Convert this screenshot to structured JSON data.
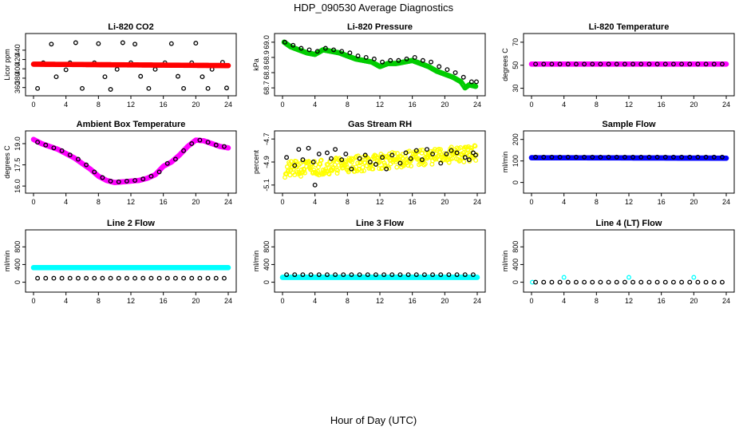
{
  "title": "HDP_090530  Average Diagnostics",
  "xlabel": "Hour of Day (UTC)",
  "chart_data": [
    {
      "type": "scatter",
      "title": "Li-820 CO2",
      "ylabel": "Licor ppm",
      "xlim": [
        0,
        24
      ],
      "ylim": [
        356,
        462
      ],
      "xticks": [
        0,
        4,
        8,
        12,
        16,
        20,
        24
      ],
      "yticks": [
        360,
        380,
        400,
        420,
        440
      ],
      "series": [
        {
          "name": "black",
          "color": "#000000",
          "marker": "ring",
          "x": [
            0.5,
            1.2,
            2.2,
            2.8,
            4.0,
            4.5,
            5.2,
            6.0,
            7.5,
            8.0,
            8.8,
            9.5,
            10.3,
            11.0,
            12.0,
            12.5,
            13.2,
            14.2,
            15.0,
            16.2,
            17.0,
            17.8,
            18.5,
            19.5,
            20.0,
            20.8,
            21.5,
            22.0,
            23.3,
            23.8
          ],
          "y": [
            358,
            413,
            453,
            383,
            398,
            413,
            456,
            358,
            413,
            454,
            383,
            356,
            399,
            456,
            413,
            453,
            384,
            358,
            399,
            413,
            454,
            384,
            358,
            413,
            455,
            383,
            358,
            399,
            414,
            359
          ]
        },
        {
          "name": "red",
          "color": "#ff0000",
          "marker": "dense",
          "x": [
            0,
            24
          ],
          "y": [
            410,
            407
          ]
        }
      ]
    },
    {
      "type": "scatter",
      "title": "Li-820 Pressure",
      "ylabel": "kPa",
      "xlim": [
        0,
        24
      ],
      "ylim": [
        68.69,
        69.015
      ],
      "xticks": [
        0,
        4,
        8,
        12,
        16,
        20,
        24
      ],
      "yticks": [
        68.7,
        68.8,
        68.9,
        69.0
      ],
      "series": [
        {
          "name": "green",
          "color": "#00cc00",
          "marker": "dense",
          "x": [
            0.2,
            1,
            2,
            3,
            4,
            5,
            6,
            7,
            8,
            9,
            10,
            11,
            12,
            13,
            14,
            15,
            16,
            17,
            18,
            19,
            20,
            21,
            22,
            22.5,
            23,
            23.8
          ],
          "y": [
            69.0,
            68.97,
            68.95,
            68.93,
            68.92,
            68.95,
            68.94,
            68.93,
            68.91,
            68.89,
            68.88,
            68.87,
            68.84,
            68.86,
            68.86,
            68.87,
            68.88,
            68.86,
            68.84,
            68.81,
            68.79,
            68.77,
            68.74,
            68.7,
            68.72,
            68.71
          ]
        },
        {
          "name": "black",
          "color": "#000000",
          "marker": "ring",
          "x": [
            0.3,
            1.3,
            2.3,
            3.3,
            4.3,
            5.3,
            6.3,
            7.3,
            8.3,
            9.3,
            10.3,
            11.3,
            12.3,
            13.3,
            14.3,
            15.3,
            16.3,
            17.3,
            18.3,
            19.3,
            20.3,
            21.3,
            22.3,
            23.3,
            23.9
          ],
          "y": [
            69.0,
            68.98,
            68.96,
            68.95,
            68.94,
            68.96,
            68.95,
            68.94,
            68.93,
            68.91,
            68.9,
            68.89,
            68.87,
            68.88,
            68.88,
            68.89,
            68.9,
            68.88,
            68.87,
            68.84,
            68.82,
            68.8,
            68.77,
            68.74,
            68.74
          ]
        }
      ]
    },
    {
      "type": "scatter",
      "title": "Li-820 Temperature",
      "ylabel": "degrees C",
      "xlim": [
        0,
        24
      ],
      "ylim": [
        29,
        72
      ],
      "xticks": [
        0,
        4,
        8,
        12,
        16,
        20,
        24
      ],
      "yticks": [
        30,
        50,
        70
      ],
      "series": [
        {
          "name": "magenta",
          "color": "#ff00ff",
          "marker": "dense",
          "x": [
            0,
            24
          ],
          "y": [
            51,
            51
          ]
        },
        {
          "name": "black",
          "color": "#000000",
          "marker": "ring",
          "x": [
            0.5,
            1.5,
            2.5,
            3.5,
            4.5,
            5.5,
            6.5,
            7.5,
            8.5,
            9.5,
            10.5,
            11.5,
            12.5,
            13.5,
            14.5,
            15.5,
            16.5,
            17.5,
            18.5,
            19.5,
            20.5,
            21.5,
            22.5,
            23.5
          ],
          "y": [
            51,
            51,
            51,
            51,
            51,
            51,
            51,
            51,
            51,
            51,
            51,
            51,
            51,
            51,
            51,
            51,
            51,
            51,
            51,
            51,
            51,
            51,
            51,
            51
          ]
        }
      ]
    },
    {
      "type": "scatter",
      "title": "Ambient Box Temperature",
      "ylabel": "degrees C",
      "xlim": [
        0,
        24
      ],
      "ylim": [
        15.95,
        19.45
      ],
      "xticks": [
        0,
        4,
        8,
        12,
        16,
        20,
        24
      ],
      "yticks": [
        16.0,
        17.5,
        19.0
      ],
      "series": [
        {
          "name": "magenta",
          "color": "#ff00ff",
          "marker": "dense",
          "x": [
            0,
            1,
            2,
            3,
            4,
            5,
            6,
            7,
            8,
            9,
            10,
            11,
            12,
            13,
            14,
            15,
            16,
            17,
            18,
            19,
            20,
            21,
            22,
            23,
            24
          ],
          "y": [
            19.3,
            19.0,
            18.8,
            18.6,
            18.3,
            18.0,
            17.6,
            17.2,
            16.7,
            16.4,
            16.25,
            16.3,
            16.35,
            16.4,
            16.55,
            16.8,
            17.4,
            17.7,
            18.2,
            18.8,
            19.25,
            19.2,
            19.0,
            18.8,
            18.7
          ]
        },
        {
          "name": "black",
          "color": "#000000",
          "marker": "ring",
          "x": [
            0.5,
            1.5,
            2.5,
            3.5,
            4.5,
            5.5,
            6.5,
            7.5,
            8.5,
            9.5,
            10.5,
            11.5,
            12.5,
            13.5,
            14.5,
            15.5,
            16.5,
            17.5,
            18.5,
            19.5,
            20.5,
            21.5,
            22.5,
            23.5
          ],
          "y": [
            19.1,
            18.9,
            18.7,
            18.5,
            18.2,
            17.9,
            17.5,
            17.0,
            16.6,
            16.35,
            16.3,
            16.35,
            16.4,
            16.5,
            16.7,
            17.0,
            17.6,
            17.9,
            18.5,
            19.0,
            19.25,
            19.1,
            18.9,
            18.8
          ]
        }
      ]
    },
    {
      "type": "scatter",
      "title": "Gas Stream RH",
      "ylabel": "percent",
      "xlim": [
        0,
        24
      ],
      "ylim": [
        -5.115,
        -4.685
      ],
      "xticks": [
        0,
        4,
        8,
        12,
        16,
        20,
        24
      ],
      "yticks": [
        -5.1,
        -4.9,
        -4.7
      ],
      "series": [
        {
          "name": "yellow",
          "color": "#ffff00",
          "marker": "scatter-band",
          "x": [
            0.3,
            23.9
          ],
          "y": [
            -4.97,
            -4.82
          ],
          "spread": 0.07
        },
        {
          "name": "black",
          "color": "#000000",
          "marker": "ring",
          "x": [
            0.5,
            1.5,
            2.0,
            2.5,
            3.2,
            3.8,
            4.0,
            4.5,
            5.5,
            6.0,
            6.5,
            7.3,
            7.8,
            8.5,
            9.5,
            10.2,
            10.8,
            11.5,
            12.3,
            12.8,
            13.5,
            14.5,
            15.2,
            15.8,
            16.5,
            17.2,
            17.8,
            18.5,
            19.5,
            20.2,
            20.8,
            21.5,
            22.5,
            23.0,
            23.5,
            23.8
          ],
          "y": [
            -4.86,
            -4.93,
            -4.79,
            -4.88,
            -4.78,
            -4.9,
            -5.1,
            -4.83,
            -4.82,
            -4.87,
            -4.79,
            -4.88,
            -4.83,
            -4.96,
            -4.87,
            -4.84,
            -4.9,
            -4.92,
            -4.86,
            -4.96,
            -4.84,
            -4.91,
            -4.82,
            -4.87,
            -4.8,
            -4.88,
            -4.79,
            -4.83,
            -4.91,
            -4.83,
            -4.8,
            -4.82,
            -4.86,
            -4.88,
            -4.82,
            -4.84
          ]
        }
      ]
    },
    {
      "type": "scatter",
      "title": "Sample Flow",
      "ylabel": "ml/min",
      "xlim": [
        0,
        24
      ],
      "ylim": [
        -20,
        210
      ],
      "xticks": [
        0,
        4,
        8,
        12,
        16,
        20,
        24
      ],
      "yticks": [
        0,
        100,
        200
      ],
      "series": [
        {
          "name": "blue",
          "color": "#0000ff",
          "marker": "dense",
          "x": [
            0,
            24
          ],
          "y": [
            115,
            113
          ]
        },
        {
          "name": "black",
          "color": "#000000",
          "marker": "ring",
          "x": [
            0.5,
            1.5,
            2.5,
            3.5,
            4.5,
            5.5,
            6.5,
            7.5,
            8.5,
            9.5,
            10.5,
            11.5,
            12.5,
            13.5,
            14.5,
            15.5,
            16.5,
            17.5,
            18.5,
            19.5,
            20.5,
            21.5,
            22.5,
            23.5
          ],
          "y": [
            118,
            118,
            118,
            118,
            118,
            118,
            118,
            118,
            118,
            118,
            118,
            118,
            118,
            118,
            118,
            118,
            118,
            118,
            118,
            118,
            118,
            118,
            118,
            118
          ]
        }
      ]
    },
    {
      "type": "scatter",
      "title": "Line 2 Flow",
      "ylabel": "ml/min",
      "xlim": [
        0,
        24
      ],
      "ylim": [
        -80,
        1040
      ],
      "xticks": [
        0,
        4,
        8,
        12,
        16,
        20,
        24
      ],
      "yticks": [
        0,
        400,
        800
      ],
      "series": [
        {
          "name": "cyan",
          "color": "#00ffff",
          "marker": "dense",
          "x": [
            0,
            24
          ],
          "y": [
            330,
            330
          ]
        },
        {
          "name": "black",
          "color": "#000000",
          "marker": "ring",
          "x": [
            0.5,
            1.5,
            2.5,
            3.5,
            4.5,
            5.5,
            6.5,
            7.5,
            8.5,
            9.5,
            10.5,
            11.5,
            12.5,
            13.5,
            14.5,
            15.5,
            16.5,
            17.5,
            18.5,
            19.5,
            20.5,
            21.5,
            22.5,
            23.5
          ],
          "y": [
            90,
            90,
            90,
            90,
            90,
            90,
            90,
            90,
            90,
            90,
            90,
            90,
            90,
            90,
            90,
            90,
            90,
            90,
            90,
            90,
            90,
            90,
            90,
            90
          ]
        }
      ]
    },
    {
      "type": "scatter",
      "title": "Line 3 Flow",
      "ylabel": "ml/min",
      "xlim": [
        0,
        24
      ],
      "ylim": [
        -80,
        1040
      ],
      "xticks": [
        0,
        4,
        8,
        12,
        16,
        20,
        24
      ],
      "yticks": [
        0,
        400,
        800
      ],
      "series": [
        {
          "name": "cyan",
          "color": "#00ffff",
          "marker": "dense",
          "x": [
            0,
            24
          ],
          "y": [
            110,
            110
          ]
        },
        {
          "name": "black",
          "color": "#000000",
          "marker": "ring",
          "x": [
            0.5,
            1.5,
            2.5,
            3.5,
            4.5,
            5.5,
            6.5,
            7.5,
            8.5,
            9.5,
            10.5,
            11.5,
            12.5,
            13.5,
            14.5,
            15.5,
            16.5,
            17.5,
            18.5,
            19.5,
            20.5,
            21.5,
            22.5,
            23.5
          ],
          "y": [
            170,
            170,
            170,
            170,
            170,
            170,
            170,
            170,
            170,
            170,
            170,
            170,
            170,
            170,
            170,
            170,
            170,
            170,
            170,
            170,
            170,
            170,
            170,
            170
          ]
        }
      ]
    },
    {
      "type": "scatter",
      "title": "Line 4 (LT) Flow",
      "ylabel": "ml/min",
      "xlim": [
        0,
        24
      ],
      "ylim": [
        -80,
        1040
      ],
      "xticks": [
        0,
        4,
        8,
        12,
        16,
        20,
        24
      ],
      "yticks": [
        0,
        400,
        800
      ],
      "series": [
        {
          "name": "cyan",
          "color": "#00ffff",
          "marker": "ring",
          "x": [
            0.1,
            4.0,
            12.0,
            20.0
          ],
          "y": [
            0,
            110,
            110,
            110
          ]
        },
        {
          "name": "black",
          "color": "#000000",
          "marker": "ring",
          "x": [
            0.5,
            1.5,
            2.5,
            3.5,
            4.5,
            5.5,
            6.5,
            7.5,
            8.5,
            9.5,
            10.5,
            11.5,
            12.5,
            13.5,
            14.5,
            15.5,
            16.5,
            17.5,
            18.5,
            19.5,
            20.5,
            21.5,
            22.5,
            23.5
          ],
          "y": [
            0,
            0,
            0,
            0,
            0,
            0,
            0,
            0,
            0,
            0,
            0,
            0,
            0,
            0,
            0,
            0,
            0,
            0,
            0,
            0,
            0,
            0,
            0,
            0
          ]
        }
      ]
    }
  ]
}
